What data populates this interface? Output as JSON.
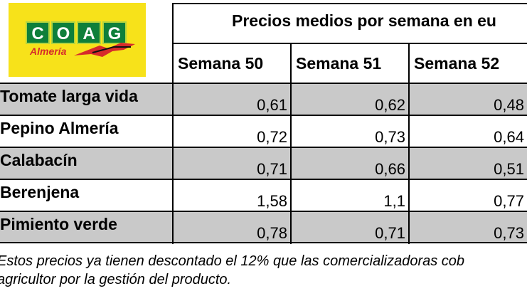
{
  "logo": {
    "word": [
      "C",
      "O",
      "A",
      "G"
    ],
    "subtitle": "Almería"
  },
  "header": {
    "title": "Precios medios por semana en eu"
  },
  "columns": [
    "Semana 50",
    "Semana 51",
    "Semana 52"
  ],
  "rows": [
    {
      "product": "Tomate larga vida",
      "values": [
        "0,61",
        "0,62",
        "0,48"
      ]
    },
    {
      "product": "Pepino Almería",
      "values": [
        "0,72",
        "0,73",
        "0,64"
      ]
    },
    {
      "product": "Calabacín",
      "values": [
        "0,71",
        "0,66",
        "0,51"
      ]
    },
    {
      "product": "Berenjena",
      "values": [
        "1,58",
        "1,1",
        "0,77"
      ]
    },
    {
      "product": "Pimiento verde",
      "values": [
        "0,78",
        "0,71",
        "0,73"
      ]
    }
  ],
  "note": {
    "line1": " Estos precios ya tienen descontado el 12% que las comercializadoras cob",
    "line2": "agricultor por la gestión del producto."
  },
  "colors": {
    "logo_bg": "#f7e21a",
    "logo_green": "#0f7f3a",
    "logo_red": "#d62b2b",
    "row_gray": "#c9c9c9"
  }
}
